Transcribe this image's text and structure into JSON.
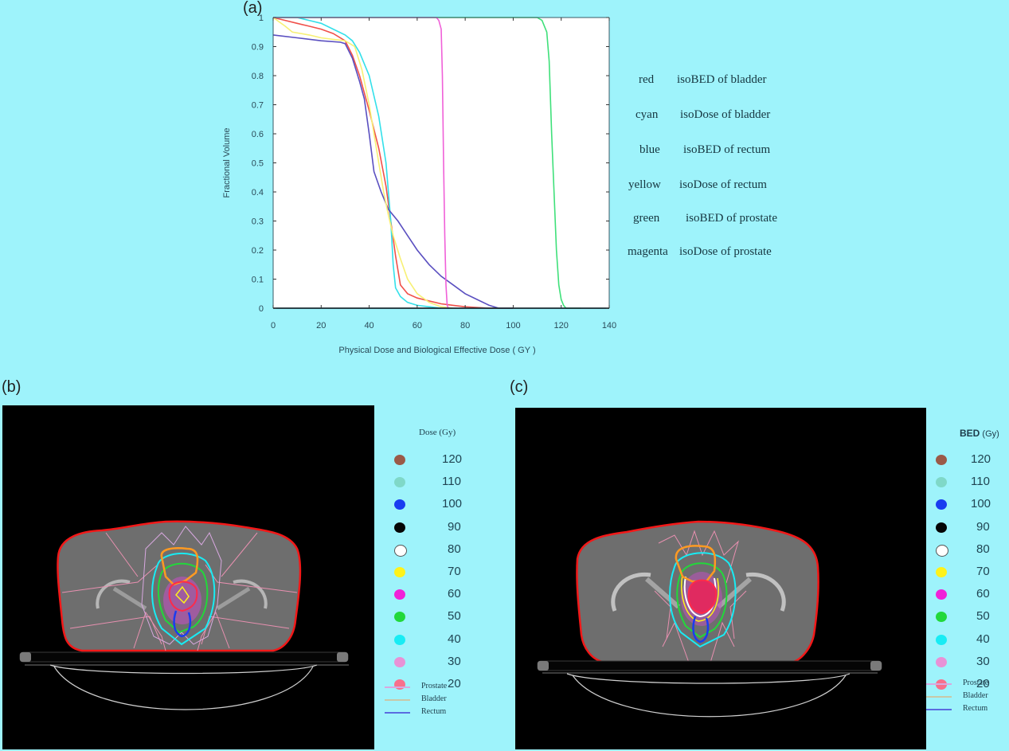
{
  "panels": {
    "a": {
      "label": "(a)"
    },
    "b": {
      "label": "(b)"
    },
    "c": {
      "label": "(c)"
    }
  },
  "chart_data": [
    {
      "type": "line",
      "title": "",
      "xlabel": "Physical Dose and Biological Effective Dose ( GY )",
      "ylabel": "Fractional Volume",
      "xlim": [
        0,
        140
      ],
      "ylim": [
        0,
        1
      ],
      "xticks": [
        "0",
        "20",
        "40",
        "60",
        "80",
        "100",
        "120",
        "140"
      ],
      "yticks": [
        "0",
        "0.1",
        "0.2",
        "0.3",
        "0.4",
        "0.5",
        "0.6",
        "0.7",
        "0.8",
        "0.9",
        "1"
      ],
      "grid": false,
      "legend_position": "right",
      "series": [
        {
          "name": "isoBED of bladder",
          "color_name": "red",
          "color": "#f0504a",
          "x": [
            0,
            5,
            10,
            15,
            20,
            25,
            30,
            33,
            36,
            40,
            44,
            47,
            49,
            51,
            53,
            56,
            60,
            65,
            70,
            75,
            80,
            90,
            100
          ],
          "y": [
            1.0,
            0.99,
            0.98,
            0.97,
            0.96,
            0.945,
            0.92,
            0.87,
            0.8,
            0.68,
            0.55,
            0.42,
            0.3,
            0.18,
            0.08,
            0.05,
            0.035,
            0.025,
            0.015,
            0.01,
            0.005,
            0.0,
            0.0
          ]
        },
        {
          "name": "isoDose of bladder",
          "color_name": "cyan",
          "color": "#33e0ea",
          "x": [
            0,
            10,
            15,
            20,
            25,
            30,
            33,
            36,
            40,
            44,
            47,
            49,
            50,
            51,
            53,
            56,
            60,
            65,
            70
          ],
          "y": [
            1.0,
            1.0,
            0.99,
            0.98,
            0.96,
            0.94,
            0.92,
            0.88,
            0.8,
            0.66,
            0.5,
            0.3,
            0.15,
            0.07,
            0.04,
            0.02,
            0.01,
            0.005,
            0.0
          ]
        },
        {
          "name": "isoBED of rectum",
          "color_name": "blue",
          "color": "#5a4fc0",
          "x": [
            0,
            10,
            20,
            28,
            30,
            33,
            36,
            38,
            40,
            42,
            45,
            48,
            52,
            56,
            60,
            65,
            70,
            75,
            80,
            85,
            90,
            94,
            100
          ],
          "y": [
            0.94,
            0.93,
            0.92,
            0.915,
            0.91,
            0.86,
            0.78,
            0.72,
            0.6,
            0.47,
            0.4,
            0.34,
            0.3,
            0.25,
            0.2,
            0.15,
            0.11,
            0.08,
            0.05,
            0.03,
            0.01,
            0.0,
            0.0
          ]
        },
        {
          "name": "isoDose of rectum",
          "color_name": "yellow",
          "color": "#f7f075",
          "x": [
            0,
            5,
            8,
            15,
            20,
            25,
            30,
            34,
            37,
            40,
            43,
            46,
            48,
            50,
            53,
            56,
            60,
            65,
            70,
            75
          ],
          "y": [
            1.0,
            0.97,
            0.95,
            0.94,
            0.93,
            0.925,
            0.92,
            0.9,
            0.82,
            0.7,
            0.55,
            0.4,
            0.32,
            0.25,
            0.17,
            0.1,
            0.05,
            0.02,
            0.005,
            0.0
          ]
        },
        {
          "name": "isoBED of prostate",
          "color_name": "green",
          "color": "#3fe07a",
          "x": [
            0,
            110,
            112,
            114,
            115,
            116,
            117,
            118,
            119,
            120,
            121,
            122,
            125,
            128
          ],
          "y": [
            1.0,
            1.0,
            0.99,
            0.95,
            0.85,
            0.6,
            0.4,
            0.2,
            0.08,
            0.03,
            0.01,
            0.0,
            0.0,
            0.0
          ]
        },
        {
          "name": "isoDose of prostate",
          "color_name": "magenta",
          "color": "#f060d8",
          "x": [
            0,
            68,
            69,
            70,
            70.5,
            71,
            71.5,
            72,
            72.5,
            73
          ],
          "y": [
            1.0,
            1.0,
            0.99,
            0.96,
            0.8,
            0.5,
            0.25,
            0.08,
            0.01,
            0.0
          ]
        }
      ]
    }
  ],
  "legend_a": [
    {
      "color_name": "red",
      "desc": "isoBED of bladder"
    },
    {
      "color_name": "cyan",
      "desc": "isoDose of bladder"
    },
    {
      "color_name": "blue",
      "desc": "isoBED of rectum"
    },
    {
      "color_name": "yellow",
      "desc": "isoDose of rectum"
    },
    {
      "color_name": "green",
      "desc": "isoBED of prostate"
    },
    {
      "color_name": "magenta",
      "desc": "isoDose of prostate"
    }
  ],
  "dose_legend_b": {
    "title": "Dose (Gy)",
    "levels": [
      {
        "value": "120",
        "color": "#9a5a48"
      },
      {
        "value": "110",
        "color": "#7fd8c8"
      },
      {
        "value": "100",
        "color": "#1a3cf0"
      },
      {
        "value": "90",
        "color": "#050505"
      },
      {
        "value": "80",
        "color": "#ffffff"
      },
      {
        "value": "70",
        "color": "#fff21a"
      },
      {
        "value": "60",
        "color": "#f022d8"
      },
      {
        "value": "50",
        "color": "#22d83a"
      },
      {
        "value": "40",
        "color": "#18ecf4"
      },
      {
        "value": "30",
        "color": "#e892d6"
      },
      {
        "value": "20",
        "color": "#f7708c"
      }
    ],
    "structures": [
      {
        "name": "Prostate",
        "color": "#d8a8e0"
      },
      {
        "name": "Bladder",
        "color": "#c8c8a8"
      },
      {
        "name": "Rectum",
        "color": "#5a6ce0"
      }
    ]
  },
  "dose_legend_c": {
    "title_bold": "BED",
    "title_unit": "(Gy)",
    "levels": [
      {
        "value": "120",
        "color": "#9a5a48"
      },
      {
        "value": "110",
        "color": "#7fd8c8"
      },
      {
        "value": "100",
        "color": "#1a3cf0"
      },
      {
        "value": "90",
        "color": "#050505"
      },
      {
        "value": "80",
        "color": "#ffffff"
      },
      {
        "value": "70",
        "color": "#fff21a"
      },
      {
        "value": "60",
        "color": "#f022d8"
      },
      {
        "value": "50",
        "color": "#22d83a"
      },
      {
        "value": "40",
        "color": "#18ecf4"
      },
      {
        "value": "30",
        "color": "#e892d6"
      },
      {
        "value": "20",
        "color": "#f7708c"
      }
    ],
    "structures": [
      {
        "name": "Prostate",
        "color": "#d8a8e0"
      },
      {
        "name": "Bladder",
        "color": "#c8c8a8"
      },
      {
        "name": "Rectum",
        "color": "#5a6ce0"
      }
    ]
  }
}
